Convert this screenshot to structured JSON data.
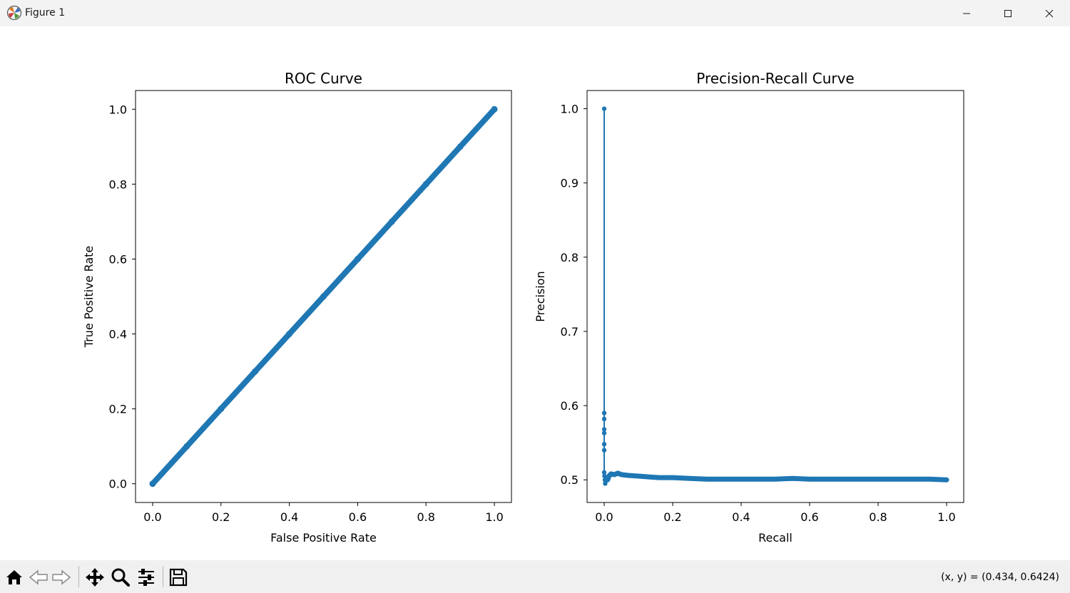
{
  "window": {
    "title": "Figure 1"
  },
  "toolbar": {
    "buttons": [
      {
        "name": "home-button",
        "icon": "home-icon"
      },
      {
        "name": "back-button",
        "icon": "back-arrow-icon"
      },
      {
        "name": "forward-button",
        "icon": "forward-arrow-icon"
      },
      {
        "name": "pan-button",
        "icon": "pan-move-icon"
      },
      {
        "name": "zoom-button",
        "icon": "zoom-magnifier-icon"
      },
      {
        "name": "configure-subplots-button",
        "icon": "sliders-icon"
      },
      {
        "name": "save-button",
        "icon": "save-floppy-icon"
      }
    ],
    "coords": "(x, y) = (0.434, 0.6424)"
  },
  "chart_data": [
    {
      "type": "line",
      "title": "ROC Curve",
      "xlabel": "False Positive Rate",
      "ylabel": "True Positive Rate",
      "xlim": [
        -0.05,
        1.05
      ],
      "ylim": [
        -0.05,
        1.05
      ],
      "xticks": [
        0.0,
        0.2,
        0.4,
        0.6,
        0.8,
        1.0
      ],
      "yticks": [
        0.0,
        0.2,
        0.4,
        0.6,
        0.8,
        1.0
      ],
      "tick_labels": [
        "0.0",
        "0.2",
        "0.4",
        "0.6",
        "0.8",
        "1.0"
      ],
      "color": "#1f77b4",
      "marker": "dot",
      "series": [
        {
          "x": [
            0.0,
            0.1,
            0.2,
            0.3,
            0.4,
            0.5,
            0.6,
            0.7,
            0.8,
            0.9,
            1.0
          ],
          "y": [
            0.0,
            0.1,
            0.2,
            0.3,
            0.4,
            0.5,
            0.6,
            0.7,
            0.8,
            0.9,
            1.0
          ]
        }
      ]
    },
    {
      "type": "line",
      "title": "Precision-Recall Curve",
      "xlabel": "Recall",
      "ylabel": "Precision",
      "xlim": [
        -0.05,
        1.05
      ],
      "ylim": [
        0.4695,
        1.0245
      ],
      "xticks": [
        0.0,
        0.2,
        0.4,
        0.6,
        0.8,
        1.0
      ],
      "yticks": [
        0.5,
        0.6,
        0.7,
        0.8,
        0.9,
        1.0
      ],
      "xtick_labels": [
        "0.0",
        "0.2",
        "0.4",
        "0.6",
        "0.8",
        "1.0"
      ],
      "ytick_labels": [
        "0.5",
        "0.6",
        "0.7",
        "0.8",
        "0.9",
        "1.0"
      ],
      "color": "#1f77b4",
      "marker": "dot",
      "series": [
        {
          "x": [
            0.0,
            0.0,
            0.0,
            0.0,
            0.0,
            0.0,
            0.0,
            0.0,
            0.001,
            0.002,
            0.003,
            0.004,
            0.006,
            0.01,
            0.015,
            0.02,
            0.03,
            0.04,
            0.05,
            0.07,
            0.1,
            0.13,
            0.16,
            0.2,
            0.25,
            0.3,
            0.4,
            0.5,
            0.55,
            0.6,
            0.7,
            0.8,
            0.9,
            0.95,
            1.0
          ],
          "y": [
            1.0,
            0.59,
            0.582,
            0.568,
            0.563,
            0.548,
            0.54,
            0.51,
            0.505,
            0.5,
            0.495,
            0.498,
            0.503,
            0.5,
            0.506,
            0.508,
            0.507,
            0.509,
            0.507,
            0.506,
            0.505,
            0.504,
            0.503,
            0.503,
            0.502,
            0.501,
            0.501,
            0.501,
            0.502,
            0.501,
            0.501,
            0.501,
            0.501,
            0.501,
            0.5
          ]
        }
      ]
    }
  ]
}
